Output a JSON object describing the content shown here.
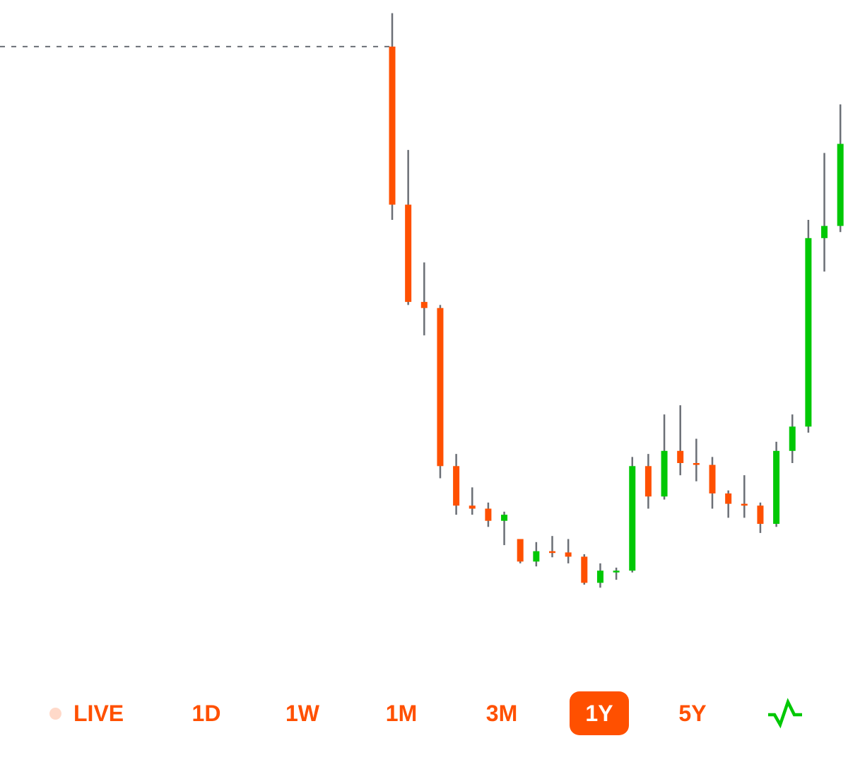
{
  "colors": {
    "down": "#ff5000",
    "up": "#00c805",
    "wick": "#6b6f76",
    "reference_line": "#6b6f76",
    "accent": "#ff5000",
    "live_dot": "#ffd9c9"
  },
  "chart_data": {
    "type": "candlestick",
    "y_range": [
      0,
      100
    ],
    "reference_value": 93.5,
    "reference_style": "dashed",
    "candles": [
      {
        "open": 93.5,
        "close": 67.5,
        "high": 99.0,
        "low": 65.0
      },
      {
        "open": 67.5,
        "close": 51.5,
        "high": 76.5,
        "low": 51.0
      },
      {
        "open": 51.5,
        "close": 50.5,
        "high": 58.0,
        "low": 46.0
      },
      {
        "open": 50.5,
        "close": 24.5,
        "high": 51.0,
        "low": 22.5
      },
      {
        "open": 24.5,
        "close": 18.0,
        "high": 26.5,
        "low": 16.5
      },
      {
        "open": 18.0,
        "close": 17.5,
        "high": 21.0,
        "low": 16.5
      },
      {
        "open": 17.5,
        "close": 15.5,
        "high": 18.5,
        "low": 14.5
      },
      {
        "open": 15.5,
        "close": 16.5,
        "high": 17.0,
        "low": 11.5
      },
      {
        "open": 12.5,
        "close": 8.8,
        "high": 12.5,
        "low": 8.5
      },
      {
        "open": 8.8,
        "close": 10.5,
        "high": 12.0,
        "low": 8.0
      },
      {
        "open": 10.5,
        "close": 10.3,
        "high": 13.0,
        "low": 9.5
      },
      {
        "open": 10.3,
        "close": 9.6,
        "high": 12.5,
        "low": 8.5
      },
      {
        "open": 9.6,
        "close": 5.3,
        "high": 10.0,
        "low": 5.0
      },
      {
        "open": 5.3,
        "close": 7.3,
        "high": 8.5,
        "low": 4.5
      },
      {
        "open": 7.3,
        "close": 7.3,
        "high": 7.8,
        "low": 5.8
      },
      {
        "open": 7.3,
        "close": 24.5,
        "high": 26.0,
        "low": 7.0
      },
      {
        "open": 24.5,
        "close": 19.5,
        "high": 26.5,
        "low": 17.5
      },
      {
        "open": 19.5,
        "close": 27.0,
        "high": 33.0,
        "low": 19.0
      },
      {
        "open": 27.0,
        "close": 25.0,
        "high": 34.5,
        "low": 23.0
      },
      {
        "open": 25.0,
        "close": 24.7,
        "high": 29.0,
        "low": 22.0
      },
      {
        "open": 24.7,
        "close": 20.0,
        "high": 26.0,
        "low": 17.5
      },
      {
        "open": 20.0,
        "close": 18.3,
        "high": 20.5,
        "low": 16.0
      },
      {
        "open": 18.3,
        "close": 18.0,
        "high": 23.0,
        "low": 16.0
      },
      {
        "open": 18.0,
        "close": 15.0,
        "high": 18.5,
        "low": 13.5
      },
      {
        "open": 15.0,
        "close": 27.0,
        "high": 28.5,
        "low": 14.5
      },
      {
        "open": 27.0,
        "close": 31.0,
        "high": 33.0,
        "low": 25.0
      },
      {
        "open": 31.0,
        "close": 62.0,
        "high": 65.0,
        "low": 30.0
      },
      {
        "open": 62.0,
        "close": 64.0,
        "high": 76.0,
        "low": 56.5
      },
      {
        "open": 64.0,
        "close": 77.5,
        "high": 84.0,
        "low": 63.0
      }
    ]
  },
  "range_selector": {
    "live": "LIVE",
    "d1": "1D",
    "w1": "1W",
    "m1": "1M",
    "m3": "3M",
    "y1": "1Y",
    "y5": "5Y",
    "selected": "1Y",
    "line_toggle_icon": "line-chart-icon"
  }
}
